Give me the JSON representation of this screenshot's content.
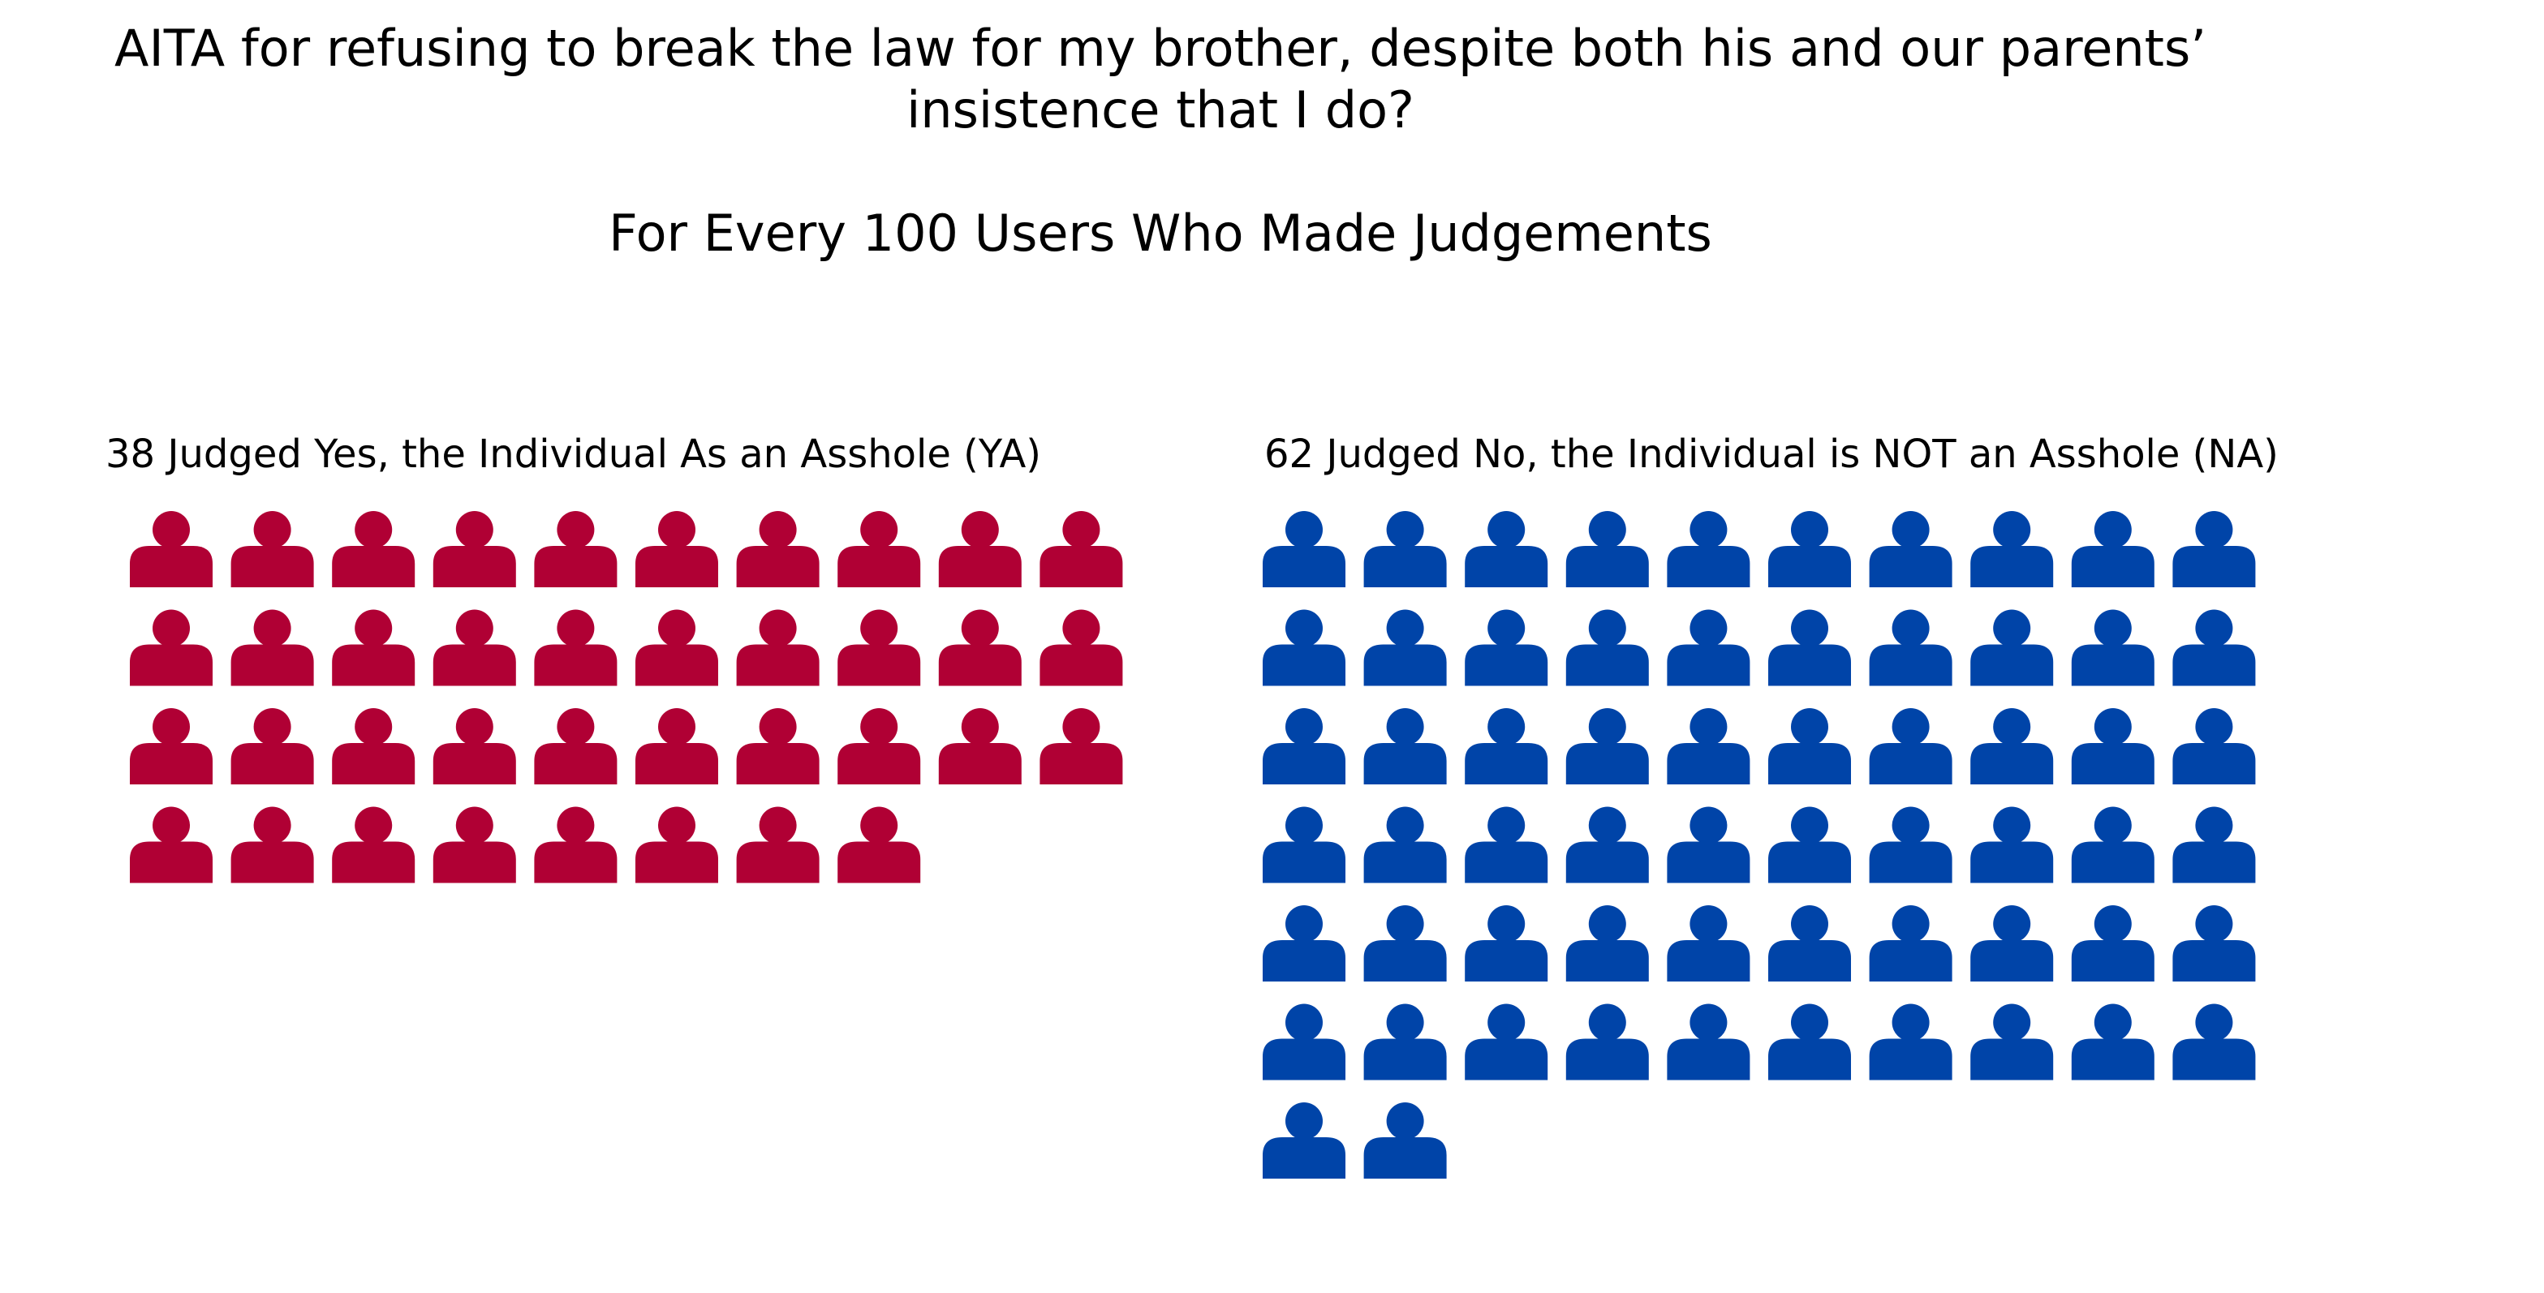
{
  "chart_data": {
    "type": "pictograph",
    "title_lines": [
      "AITA for refusing to break the law for my brother, despite both his and our parents’",
      "insistence that I do?"
    ],
    "subtitle": "For Every 100 Users Who Made Judgements",
    "total": 100,
    "icon": "person-icon",
    "icons_per_row": 10,
    "panels": [
      {
        "key": "ya",
        "label": "38 Judged Yes, the Individual As an Asshole (YA)",
        "count": 38,
        "color": "#b00034"
      },
      {
        "key": "na",
        "label": "62 Judged No, the Individual is NOT an Asshole (NA)",
        "count": 62,
        "color": "#0044a8"
      }
    ]
  }
}
